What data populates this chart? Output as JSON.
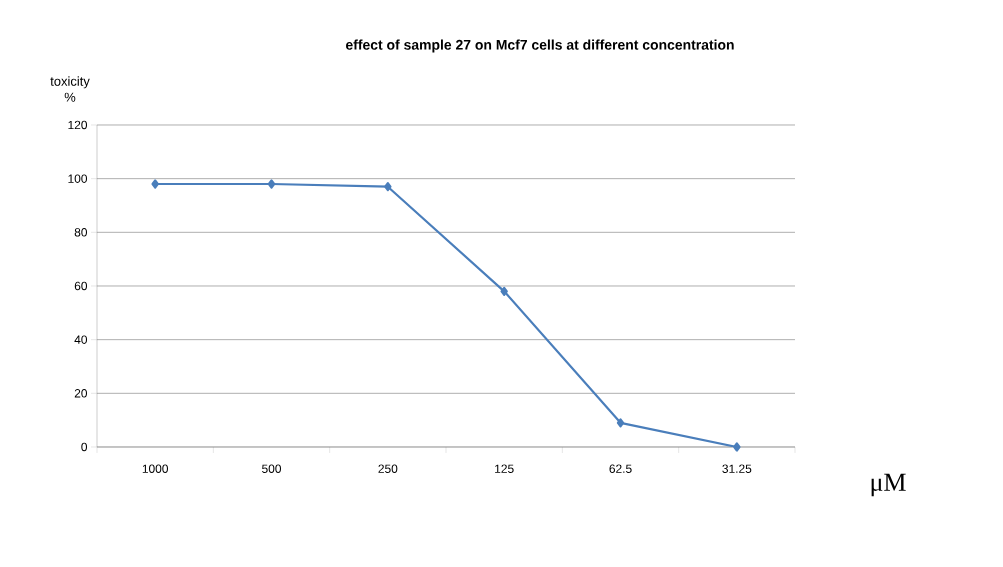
{
  "chart_data": {
    "type": "line",
    "title": "effect of sample 27 on Mcf7 cells at different concentration",
    "ylabel": "toxicity %",
    "xlabel": "μM",
    "categories": [
      "1000",
      "500",
      "250",
      "125",
      "62.5",
      "31.25"
    ],
    "series": [
      {
        "color": "#4a7ebb",
        "values": [
          98,
          98,
          97,
          58,
          9,
          0
        ]
      }
    ],
    "ylim": [
      0,
      120
    ],
    "yticks": [
      0,
      20,
      40,
      60,
      80,
      100,
      120
    ],
    "grid": "y",
    "marker": "diamond",
    "line_style": "solid"
  }
}
